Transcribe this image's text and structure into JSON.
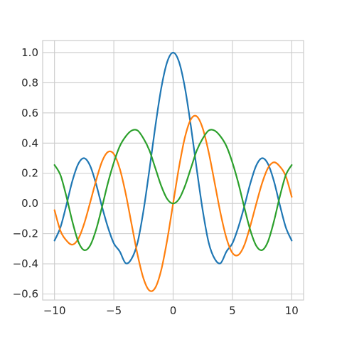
{
  "chart_data": {
    "type": "line",
    "title": "",
    "xlabel": "",
    "ylabel": "",
    "xlim": [
      -11,
      11
    ],
    "ylim": [
      -0.64,
      1.08
    ],
    "grid": true,
    "legend": "none",
    "x_ticks": [
      -10,
      -5,
      0,
      5,
      10
    ],
    "x_tick_labels": [
      "−10",
      "−5",
      "0",
      "5",
      "10"
    ],
    "y_ticks": [
      -0.6,
      -0.4,
      -0.2,
      0.0,
      0.2,
      0.4,
      0.6,
      0.8,
      1.0
    ],
    "y_tick_labels": [
      "−0.6",
      "−0.4",
      "−0.2",
      "0.0",
      "0.2",
      "0.4",
      "0.6",
      "0.8",
      "1.0"
    ],
    "series": [
      {
        "color": "#1f77b4",
        "x": [
          -10,
          -9.5,
          -9,
          -8.5,
          -8,
          -7.5,
          -7,
          -6.5,
          -6,
          -5.5,
          -5,
          -4.5,
          -4,
          -3.5,
          -3,
          -2.5,
          -2,
          -1.5,
          -1,
          -0.5,
          0,
          0.5,
          1,
          1.5,
          2,
          2.5,
          3,
          3.5,
          4,
          4.5,
          5,
          5.5,
          6,
          6.5,
          7,
          7.5,
          8,
          8.5,
          9,
          9.5,
          10
        ],
        "y": [
          -0.246,
          -0.158,
          -0.011,
          0.148,
          0.262,
          0.3,
          0.25,
          0.13,
          -0.02,
          -0.157,
          -0.264,
          -0.318,
          -0.396,
          -0.366,
          -0.26,
          -0.048,
          0.223,
          0.511,
          0.765,
          0.938,
          1.0,
          0.938,
          0.765,
          0.511,
          0.223,
          -0.048,
          -0.26,
          -0.366,
          -0.396,
          -0.318,
          -0.264,
          -0.157,
          -0.02,
          0.13,
          0.25,
          0.3,
          0.262,
          0.148,
          -0.011,
          -0.158,
          -0.246
        ]
      },
      {
        "color": "#ff7f0e",
        "x": [
          -10,
          -9.5,
          -9,
          -8.5,
          -8,
          -7.5,
          -7,
          -6.5,
          -6,
          -5.5,
          -5,
          -4.5,
          -4,
          -3.5,
          -3,
          -2.5,
          -2,
          -1.5,
          -1,
          -0.5,
          0,
          0.5,
          1,
          1.5,
          2,
          2.5,
          3,
          3.5,
          4,
          4.5,
          5,
          5.5,
          6,
          6.5,
          7,
          7.5,
          8,
          8.5,
          9,
          9.5,
          10
        ],
        "y": [
          -0.044,
          -0.181,
          -0.245,
          -0.273,
          -0.235,
          -0.134,
          0.005,
          0.151,
          0.277,
          0.341,
          0.328,
          0.231,
          0.066,
          -0.138,
          -0.339,
          -0.497,
          -0.577,
          -0.558,
          -0.44,
          -0.242,
          0.0,
          0.242,
          0.44,
          0.558,
          0.577,
          0.497,
          0.339,
          0.138,
          -0.066,
          -0.231,
          -0.328,
          -0.341,
          -0.277,
          -0.151,
          -0.005,
          0.134,
          0.235,
          0.273,
          0.245,
          0.181,
          0.044
        ]
      },
      {
        "color": "#2ca02c",
        "x": [
          -10,
          -9.5,
          -9,
          -8.5,
          -8,
          -7.5,
          -7,
          -6.5,
          -6,
          -5.5,
          -5,
          -4.5,
          -4,
          -3.5,
          -3,
          -2.5,
          -2,
          -1.5,
          -1,
          -0.5,
          0,
          0.5,
          1,
          1.5,
          2,
          2.5,
          3,
          3.5,
          4,
          4.5,
          5,
          5.5,
          6,
          6.5,
          7,
          7.5,
          8,
          8.5,
          9,
          9.5,
          10
        ],
        "y": [
          0.255,
          0.188,
          0.047,
          -0.118,
          -0.252,
          -0.309,
          -0.279,
          -0.175,
          -0.025,
          0.135,
          0.271,
          0.379,
          0.444,
          0.483,
          0.484,
          0.431,
          0.352,
          0.234,
          0.116,
          0.03,
          0.0,
          0.03,
          0.116,
          0.234,
          0.352,
          0.431,
          0.484,
          0.483,
          0.444,
          0.379,
          0.271,
          0.135,
          -0.025,
          -0.175,
          -0.279,
          -0.309,
          -0.252,
          -0.118,
          0.047,
          0.188,
          0.255
        ]
      }
    ]
  }
}
